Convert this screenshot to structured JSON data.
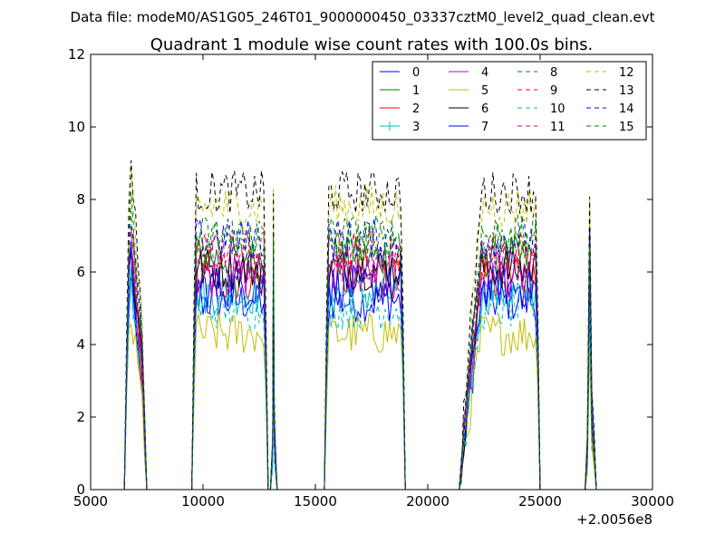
{
  "figure": {
    "suptitle": "Data file: modeM0/AS1G05_246T01_9000000450_03337cztM0_level2_quad_clean.evt"
  },
  "chart_data": {
    "type": "line",
    "title": "Quadrant 1 module wise count rates with 100.0s bins.",
    "xlabel": "",
    "ylabel": "",
    "xlim": [
      5000,
      30000
    ],
    "ylim": [
      0,
      12
    ],
    "x_offset_label": "+2.0056e8",
    "xticks": [
      5000,
      10000,
      15000,
      20000,
      25000,
      30000
    ],
    "xtick_labels": [
      "5000",
      "10000",
      "15000",
      "20000",
      "25000",
      "30000"
    ],
    "yticks": [
      0,
      2,
      4,
      6,
      8,
      10,
      12
    ],
    "ytick_labels": [
      "0",
      "2",
      "4",
      "6",
      "8",
      "10",
      "12"
    ],
    "grid": false,
    "legend_position": "top-right",
    "legend_columns": 4,
    "segments": [
      {
        "x_start": 6600,
        "x_end": 7400,
        "shape": "peak",
        "peak_at": 6800
      },
      {
        "x_start": 9600,
        "x_end": 12800,
        "shape": "flat"
      },
      {
        "x_start": 13100,
        "x_end": 13200,
        "shape": "spike"
      },
      {
        "x_start": 15500,
        "x_end": 18900,
        "shape": "flat"
      },
      {
        "x_start": 21500,
        "x_end": 24900,
        "shape": "rise"
      },
      {
        "x_start": 27100,
        "x_end": 27400,
        "shape": "spike"
      }
    ],
    "series": [
      {
        "name": "0",
        "color": "#0000ff",
        "dash": "solid",
        "level": 5.2
      },
      {
        "name": "1",
        "color": "#008000",
        "dash": "solid",
        "level": 6.4
      },
      {
        "name": "2",
        "color": "#ff0000",
        "dash": "solid",
        "level": 5.8
      },
      {
        "name": "3",
        "color": "#00bfbf",
        "dash": "solid",
        "level": 5.4,
        "marker": "+"
      },
      {
        "name": "4",
        "color": "#bf00bf",
        "dash": "solid",
        "level": 5.9
      },
      {
        "name": "5",
        "color": "#bfbf00",
        "dash": "solid",
        "level": 4.3
      },
      {
        "name": "6",
        "color": "#000000",
        "dash": "solid",
        "level": 6.1
      },
      {
        "name": "7",
        "color": "#0000ff",
        "dash": "solid",
        "level": 5.6
      },
      {
        "name": "8",
        "color": "#008000",
        "dash": "dashed",
        "level": 6.8
      },
      {
        "name": "9",
        "color": "#ff0000",
        "dash": "dashed",
        "level": 6.6
      },
      {
        "name": "10",
        "color": "#00bfbf",
        "dash": "dashed",
        "level": 5.0
      },
      {
        "name": "11",
        "color": "#bf00bf",
        "dash": "dashed",
        "level": 6.3
      },
      {
        "name": "12",
        "color": "#bfbf00",
        "dash": "dashed",
        "level": 7.8
      },
      {
        "name": "13",
        "color": "#000000",
        "dash": "dashed",
        "level": 8.2
      },
      {
        "name": "14",
        "color": "#0000ff",
        "dash": "dashed",
        "level": 6.9
      },
      {
        "name": "15",
        "color": "#008000",
        "dash": "dashed",
        "level": 7.0
      }
    ]
  }
}
